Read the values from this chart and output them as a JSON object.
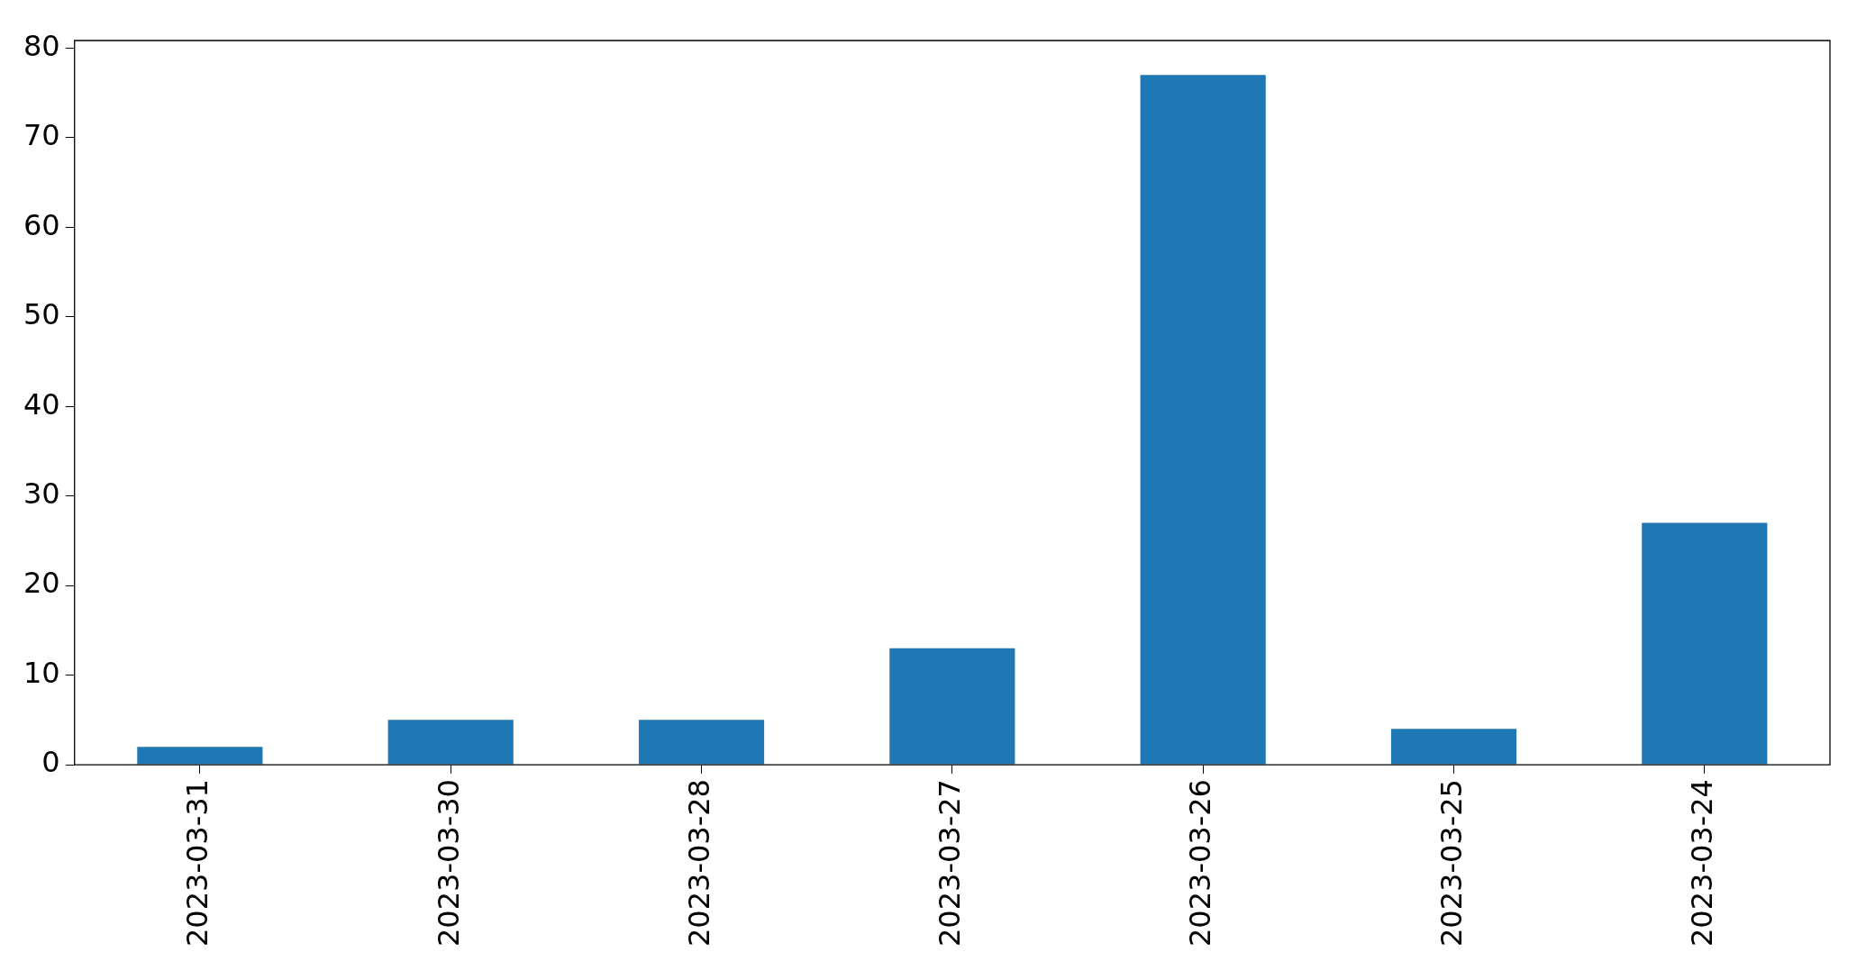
{
  "chart_data": {
    "type": "bar",
    "categories": [
      "2023-03-31",
      "2023-03-30",
      "2023-03-28",
      "2023-03-27",
      "2023-03-26",
      "2023-03-25",
      "2023-03-24"
    ],
    "values": [
      2,
      5,
      5,
      13,
      77,
      4,
      27
    ],
    "color": "#1f77b4",
    "ylim": [
      0,
      80.85
    ],
    "yticks": [
      0,
      10,
      20,
      30,
      40,
      50,
      60,
      70,
      80
    ],
    "grid": false,
    "legend": false
  }
}
